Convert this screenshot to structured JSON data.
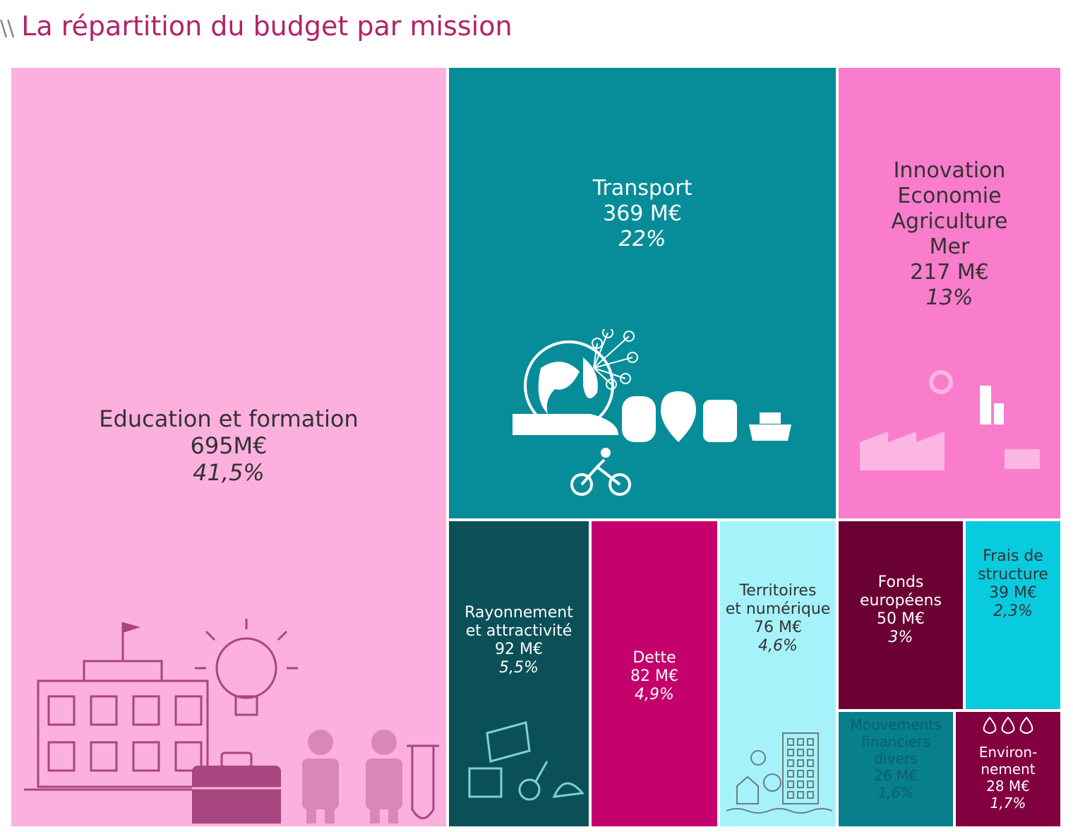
{
  "title_prefix": "\\\\",
  "title": "La répartition du budget par mission",
  "colors": {
    "title": "#b1246a",
    "education": "#fcb0dd",
    "transport": "#068d99",
    "innovation": "#f97dcc",
    "rayonnement": "#0b5058",
    "dette": "#c4006c",
    "territoires": "#a6f2fb",
    "fonds": "#6a0034",
    "frais": "#08cbe0",
    "mouvements": "#077f8d",
    "environnement": "#82003f"
  },
  "chart_data": {
    "type": "treemap",
    "title": "La répartition du budget par mission",
    "unit": "M€",
    "items": [
      {
        "id": "education",
        "name": "Education et formation",
        "value": 695,
        "value_label": "695M€",
        "percent": 41.5,
        "percent_label": "41,5%",
        "icon": "school-icon"
      },
      {
        "id": "transport",
        "name": "Transport",
        "value": 369,
        "value_label": "369 M€",
        "percent": 22,
        "percent_label": "22%",
        "icon": "transport-icon"
      },
      {
        "id": "innovation",
        "name": "Innovation\nEconomie\nAgriculture\nMer",
        "value": 217,
        "value_label": "217 M€",
        "percent": 13,
        "percent_label": "13%",
        "icon": "industry-icon"
      },
      {
        "id": "rayonnement",
        "name": "Rayonnement\net attractivité",
        "value": 92,
        "value_label": "92 M€",
        "percent": 5.5,
        "percent_label": "5,5%",
        "icon": "culture-icon"
      },
      {
        "id": "dette",
        "name": "Dette",
        "value": 82,
        "value_label": "82 M€",
        "percent": 4.9,
        "percent_label": "4,9%",
        "icon": ""
      },
      {
        "id": "territoires",
        "name": "Territoires\net numérique",
        "value": 76,
        "value_label": "76 M€",
        "percent": 4.6,
        "percent_label": "4,6%",
        "icon": "city-icon"
      },
      {
        "id": "fonds",
        "name": "Fonds\neuropéens",
        "value": 50,
        "value_label": "50 M€",
        "percent": 3,
        "percent_label": "3%",
        "icon": ""
      },
      {
        "id": "frais",
        "name": "Frais de\nstructure",
        "value": 39,
        "value_label": "39 M€",
        "percent": 2.3,
        "percent_label": "2,3%",
        "icon": ""
      },
      {
        "id": "mouvements",
        "name": "Mouvements\nfinanciers\ndivers",
        "value": 26,
        "value_label": "26 M€",
        "percent": 1.6,
        "percent_label": "1,6%",
        "icon": ""
      },
      {
        "id": "environnement",
        "name": "Environ-\nnement",
        "value": 28,
        "value_label": "28 M€",
        "percent": 1.7,
        "percent_label": "1,7%",
        "icon": "drops-icon"
      }
    ]
  }
}
